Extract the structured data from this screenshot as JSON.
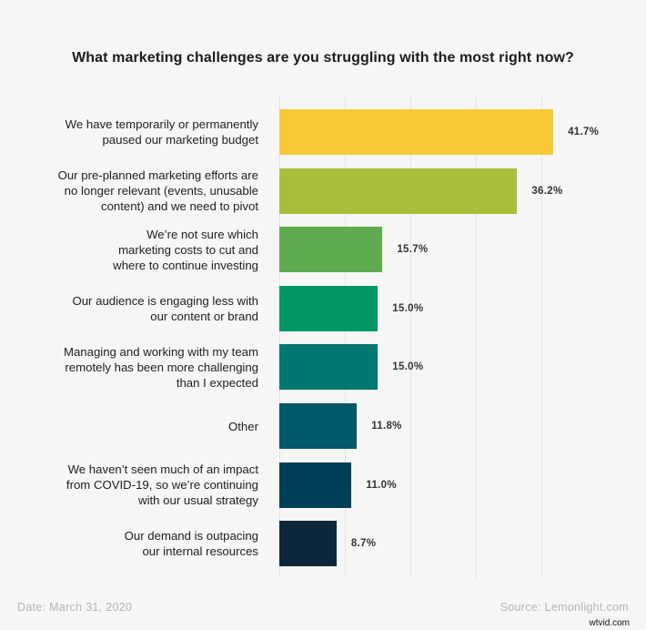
{
  "chart_data": {
    "type": "bar",
    "orientation": "horizontal",
    "title": "What marketing challenges are you struggling with the most right now?",
    "xlabel": "",
    "ylabel": "",
    "xlim": [
      0,
      42
    ],
    "grid": true,
    "gridlines_at": [
      0,
      10,
      20,
      30,
      40
    ],
    "categories": [
      "We have temporarily or permanently\npaused our marketing budget",
      "Our pre-planned marketing efforts are\nno longer relevant (events, unusable\ncontent) and we need to pivot",
      "We’re not sure which\nmarketing costs to cut and\nwhere to continue investing",
      "Our audience is engaging less with\nour content or brand",
      "Managing and working with my team\nremotely has been more challenging\nthan I expected",
      "Other",
      "We haven’t seen much of an impact\nfrom COVID-19, so we’re continuing\nwith our usual strategy",
      "Our demand is outpacing\nour internal resources"
    ],
    "values": [
      41.7,
      36.2,
      15.7,
      15.0,
      15.0,
      11.8,
      11.0,
      8.7
    ],
    "value_labels": [
      "41.7%",
      "36.2%",
      "15.7%",
      "15.0%",
      "15.0%",
      "11.8%",
      "11.0%",
      "8.7%"
    ],
    "colors": [
      "#F9C938",
      "#A9BF3C",
      "#5EAC4F",
      "#009764",
      "#00776F",
      "#005868",
      "#003F58",
      "#0D273A"
    ],
    "legend": null
  },
  "footer": {
    "date": "Date: March 31, 2020",
    "source": "Source: Lemonlight.com",
    "watermark": "wtvid.com"
  }
}
